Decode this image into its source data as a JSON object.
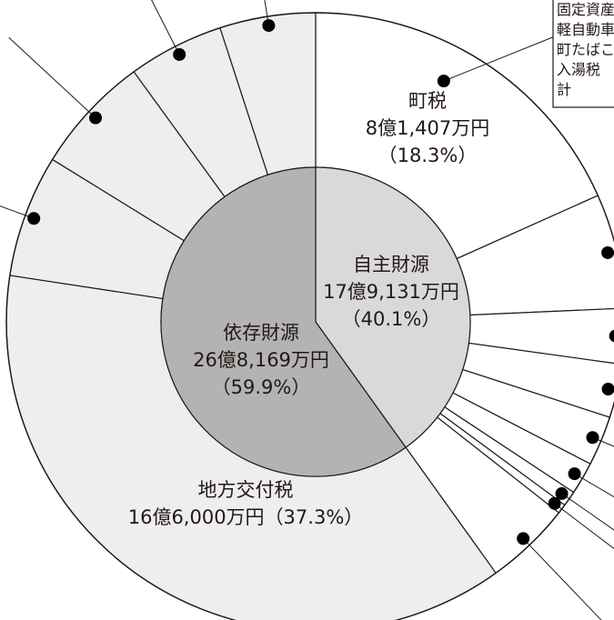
{
  "chart_data": {
    "type": "pie",
    "unit": "万円",
    "inner": {
      "slices": [
        {
          "name": "自主財源",
          "value_label": "17億9,131万円",
          "pct_label": "（40.1%）",
          "value": 179131,
          "percent": 40.1,
          "color": "#d9d9d9"
        },
        {
          "name": "依存財源",
          "value_label": "26億8,169万円",
          "pct_label": "（59.9%）",
          "value": 268169,
          "percent": 59.9,
          "color": "#b3b3b3"
        }
      ]
    },
    "outer": {
      "fill": "#ffffff",
      "other_fill": "#eeeeee",
      "slices": [
        {
          "name": "町税",
          "value_label": "8億1,407万円",
          "pct_label": "（18.3%）",
          "value": 81407,
          "percent": 18.3,
          "group": "自主財源"
        },
        {
          "percent": 6.0,
          "group": "自主財源"
        },
        {
          "percent": 2.9,
          "group": "自主財源"
        },
        {
          "percent": 2.8,
          "group": "自主財源"
        },
        {
          "percent": 2.6,
          "group": "自主財源"
        },
        {
          "percent": 1.7,
          "group": "自主財源"
        },
        {
          "percent": 0.8,
          "group": "自主財源"
        },
        {
          "percent": 0.5,
          "group": "自主財源"
        },
        {
          "percent": 4.5,
          "group": "自主財源"
        },
        {
          "name": "地方交付税",
          "value_label": "16億6,000万円",
          "pct_label": "（37.3%）",
          "value": 166000,
          "percent": 37.3,
          "group": "依存財源"
        },
        {
          "percent": 6.4,
          "group": "依存財源"
        },
        {
          "percent": 6.2,
          "group": "依存財源"
        },
        {
          "percent": 5.0,
          "group": "依存財源"
        },
        {
          "percent": 5.0,
          "group": "依存財源"
        }
      ]
    },
    "callout_note": {
      "lines": [
        "固定資産",
        "軽自動車",
        "町たばこ",
        "入湯税",
        "計"
      ]
    }
  }
}
